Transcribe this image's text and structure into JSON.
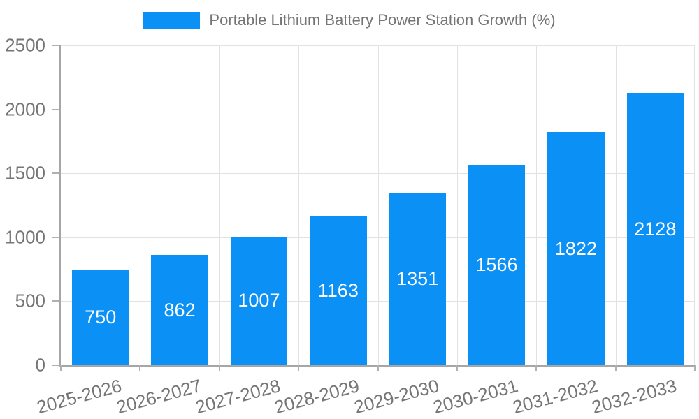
{
  "legend": {
    "label": "Portable Lithium Battery Power Station Growth (%)"
  },
  "colors": {
    "bar": "#0b90f5",
    "axis": "#a6a6a6",
    "grid": "#e2e2e2",
    "tick_label": "#757575",
    "value_label": "#ffffff",
    "background": "#ffffff"
  },
  "chart_data": {
    "type": "bar",
    "title": "Portable Lithium Battery Power Station Growth (%)",
    "categories": [
      "2025-2026",
      "2026-2027",
      "2027-2028",
      "2028-2029",
      "2029-2030",
      "2030-2031",
      "2031-2032",
      "2032-2033"
    ],
    "values": [
      750,
      862,
      1007,
      1163,
      1351,
      1566,
      1822,
      2128
    ],
    "xlabel": "",
    "ylabel": "",
    "ylim": [
      0,
      2500
    ],
    "yticks": [
      0,
      500,
      1000,
      1500,
      2000,
      2500
    ],
    "grid": true,
    "legend_position": "top",
    "value_label_position": "inside-center"
  }
}
